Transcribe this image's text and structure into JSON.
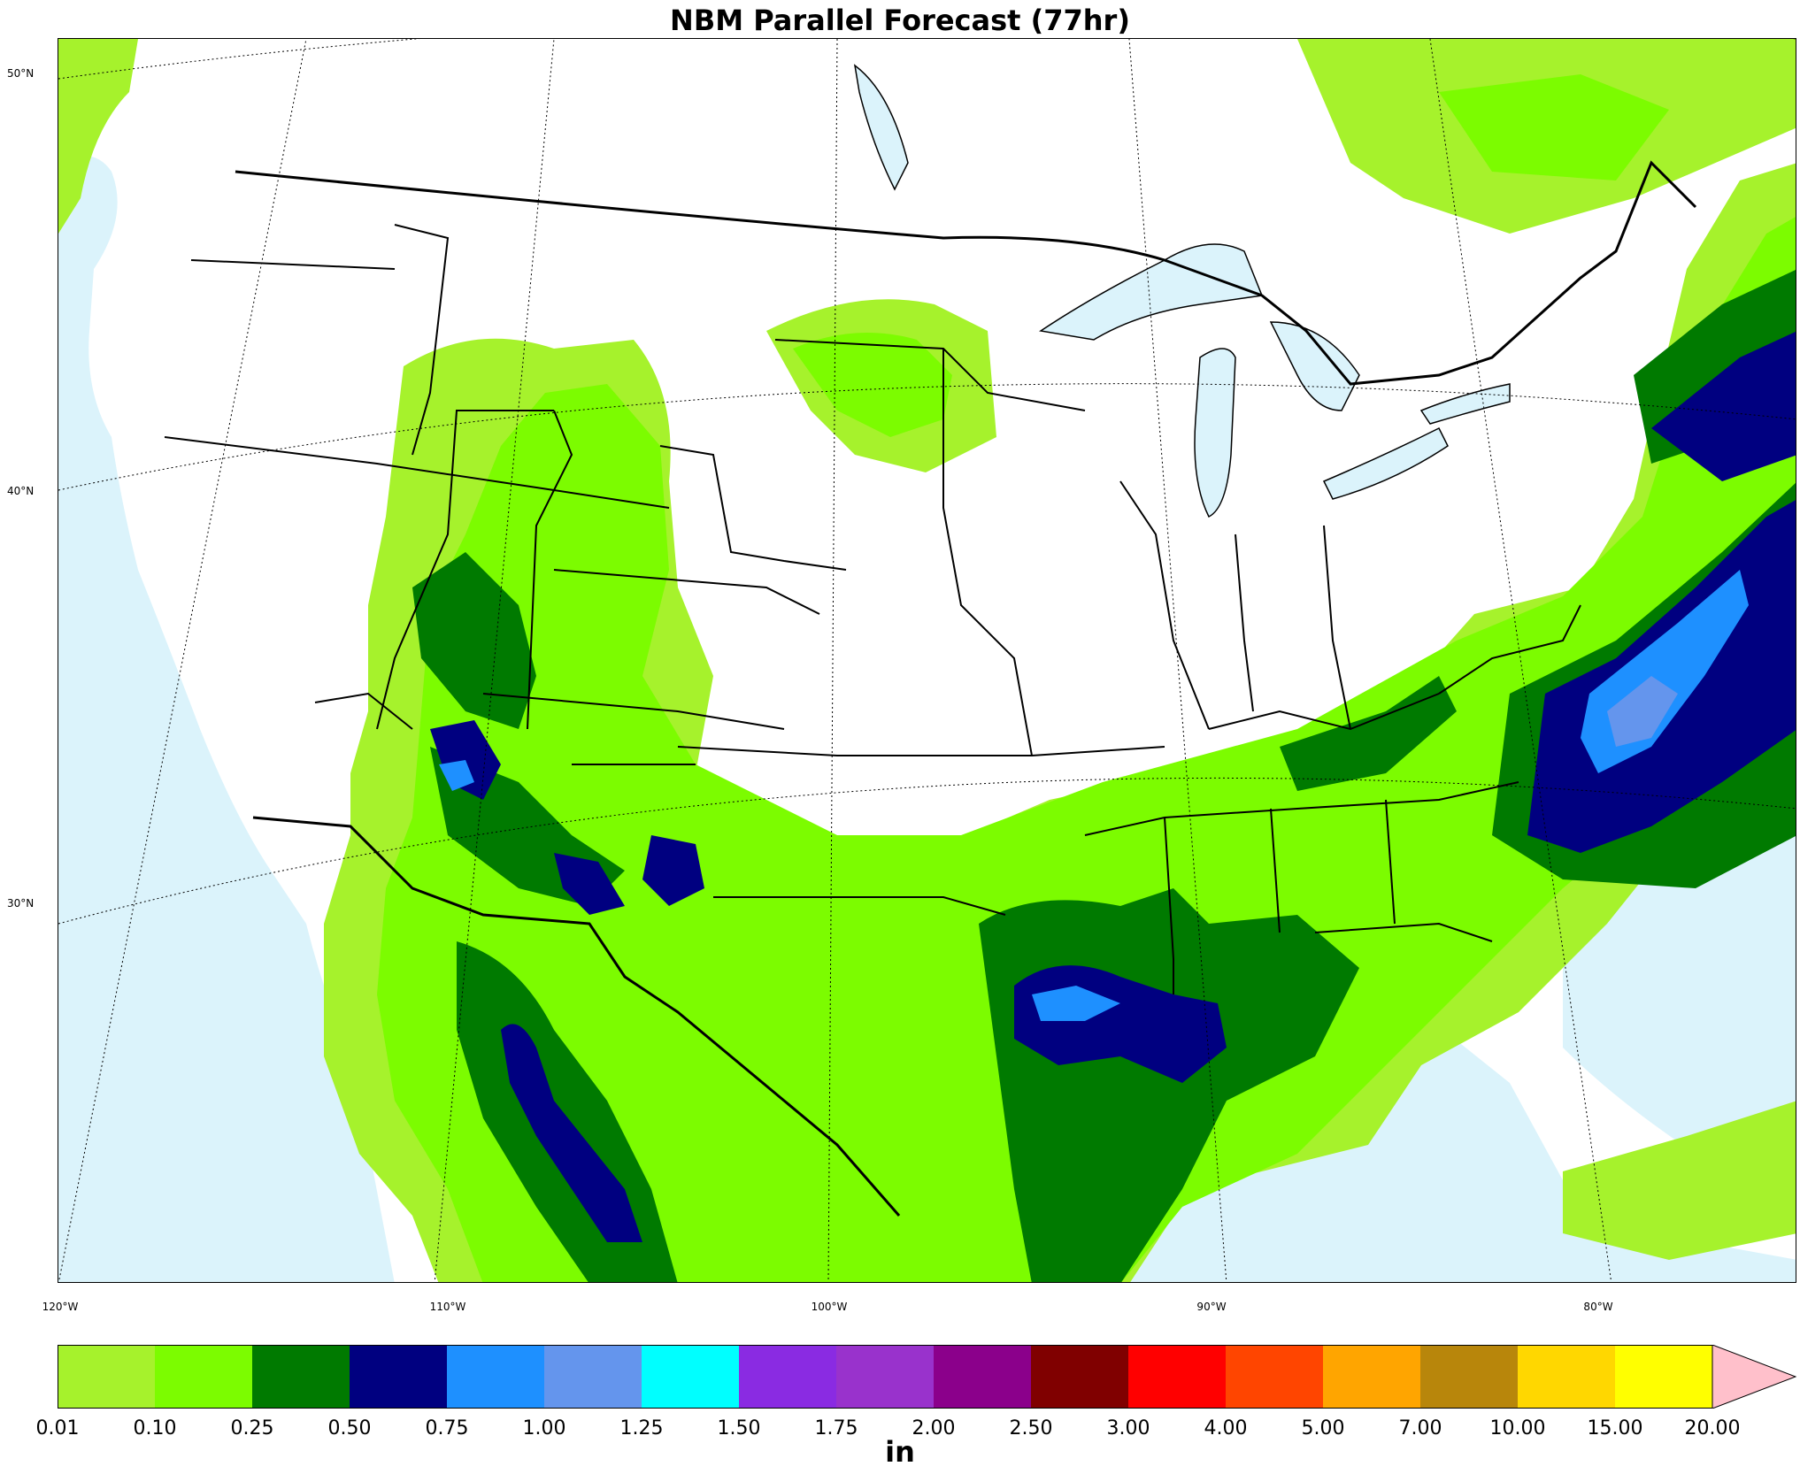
{
  "title": "NBM Parallel Forecast (77hr)",
  "colors": {
    "water": "#dbf3fb",
    "land": "#ffffff"
  },
  "lat_labels": [
    "50°N",
    "40°N",
    "30°N"
  ],
  "lon_labels": [
    "120°W",
    "110°W",
    "100°W",
    "90°W",
    "80°W"
  ],
  "colorbar": {
    "unit": "in",
    "ticks": [
      "0.01",
      "0.10",
      "0.25",
      "0.50",
      "0.75",
      "1.00",
      "1.25",
      "1.50",
      "1.75",
      "2.00",
      "2.50",
      "3.00",
      "4.00",
      "5.00",
      "7.00",
      "10.00",
      "15.00",
      "20.00"
    ],
    "colors": [
      "#a6f22c",
      "#7cfc00",
      "#007a00",
      "#000080",
      "#1e90ff",
      "#6495ed",
      "#00ffff",
      "#8a2be2",
      "#9932cc",
      "#8b008b",
      "#800000",
      "#ff0000",
      "#ff4500",
      "#ffa500",
      "#b8860b",
      "#ffd700",
      "#ffff00"
    ],
    "extend_color": "#ffc0cb"
  }
}
